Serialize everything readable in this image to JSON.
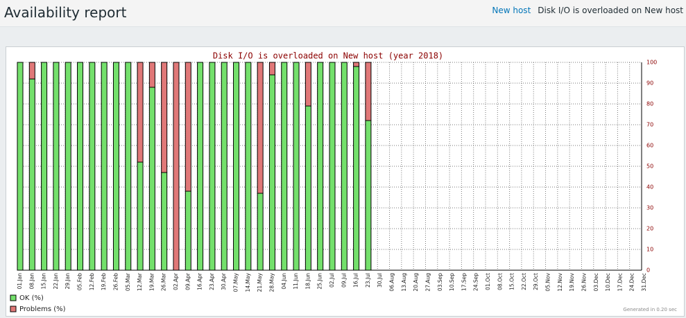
{
  "header": {
    "title": "Availability report",
    "host_link": "New host",
    "trigger": "Disk I/O is overloaded on New host"
  },
  "chart_data": {
    "type": "bar",
    "stacked": true,
    "title": "Disk I/O is overloaded on New host (year 2018)",
    "footer": "Generated in 0.20 sec",
    "categories": [
      "01.Jan",
      "08.Jan",
      "15.Jan",
      "22.Jan",
      "29.Jan",
      "05.Feb",
      "12.Feb",
      "19.Feb",
      "26.Feb",
      "05.Mar",
      "12.Mar",
      "19.Mar",
      "26.Mar",
      "02.Apr",
      "09.Apr",
      "16.Apr",
      "23.Apr",
      "30.Apr",
      "07.May",
      "14.May",
      "21.May",
      "28.May",
      "04.Jun",
      "11.Jun",
      "18.Jun",
      "25.Jun",
      "02.Jul",
      "09.Jul",
      "16.Jul",
      "23.Jul",
      "30.Jul",
      "06.Aug",
      "13.Aug",
      "20.Aug",
      "27.Aug",
      "03.Sep",
      "10.Sep",
      "17.Sep",
      "24.Sep",
      "01.Oct",
      "08.Oct",
      "15.Oct",
      "22.Oct",
      "29.Oct",
      "05.Nov",
      "12.Nov",
      "19.Nov",
      "26.Nov",
      "03.Dec",
      "10.Dec",
      "17.Dec",
      "24.Dec",
      "31.Dec"
    ],
    "series": [
      {
        "name": "OK (%)",
        "color": "#74e06c",
        "values": [
          100,
          92,
          100,
          100,
          100,
          100,
          100,
          100,
          100,
          100,
          52,
          88,
          47,
          0,
          38,
          100,
          100,
          100,
          100,
          100,
          37,
          94,
          100,
          100,
          79,
          100,
          100,
          100,
          98,
          72,
          null,
          null,
          null,
          null,
          null,
          null,
          null,
          null,
          null,
          null,
          null,
          null,
          null,
          null,
          null,
          null,
          null,
          null,
          null,
          null,
          null,
          null,
          null
        ]
      },
      {
        "name": "Problems (%)",
        "color": "#e07878",
        "values": [
          0,
          8,
          0,
          0,
          0,
          0,
          0,
          0,
          0,
          0,
          48,
          12,
          53,
          100,
          62,
          0,
          0,
          0,
          0,
          0,
          63,
          6,
          0,
          0,
          21,
          0,
          0,
          0,
          2,
          28,
          null,
          null,
          null,
          null,
          null,
          null,
          null,
          null,
          null,
          null,
          null,
          null,
          null,
          null,
          null,
          null,
          null,
          null,
          null,
          null,
          null,
          null,
          null
        ]
      }
    ],
    "ylim": [
      0,
      100
    ],
    "yticks": [
      0,
      10,
      20,
      30,
      40,
      50,
      60,
      70,
      80,
      90,
      100
    ],
    "grid": true
  }
}
